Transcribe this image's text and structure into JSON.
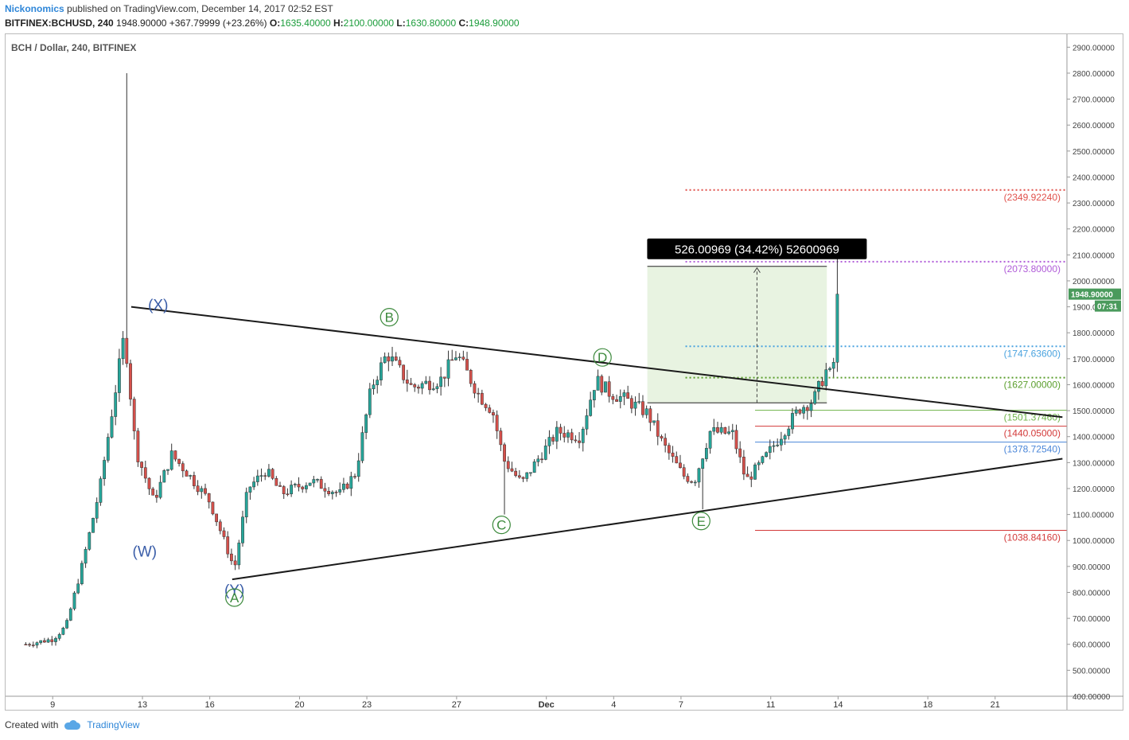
{
  "header": {
    "author": "Nickonomics",
    "published": "published on TradingView.com, December 14, 2017 02:52 EST",
    "symbol": "BITFINEX:BCHUSD, 240",
    "last": "1948.90000",
    "change": "+367.79999 (+23.26%)",
    "o_label": "O:",
    "o_value": "1635.40000",
    "h_label": "H:",
    "h_value": "2100.00000",
    "l_label": "L:",
    "l_value": "1630.80000",
    "c_label": "C:",
    "c_value": "1948.90000"
  },
  "footer": {
    "created_with": "Created with",
    "brand": "TradingView"
  },
  "colors": {
    "up": "#26a69a",
    "down": "#d5504b",
    "trendline": "#1a1a1a",
    "wave_label": "#3a5da8",
    "abc_label": "#3d8a3d",
    "box_fill": "#e8f3e1",
    "last_price": "#4a9a5c"
  },
  "chart_data": {
    "type": "candlestick",
    "title": "BCH / Dollar, 240, BITFINEX",
    "ylim": [
      400,
      2950
    ],
    "y_ticks": [
      400,
      500,
      600,
      700,
      800,
      900,
      1000,
      1100,
      1200,
      1300,
      1400,
      1500,
      1600,
      1700,
      1800,
      1900,
      2000,
      2100,
      2200,
      2300,
      2400,
      2500,
      2600,
      2700,
      2800,
      2900
    ],
    "x_ticks": [
      {
        "label": "9",
        "day": 9
      },
      {
        "label": "13",
        "day": 13
      },
      {
        "label": "16",
        "day": 16
      },
      {
        "label": "20",
        "day": 20
      },
      {
        "label": "23",
        "day": 23
      },
      {
        "label": "27",
        "day": 27
      },
      {
        "label": "Dec",
        "day": 31,
        "bold": true
      },
      {
        "label": "4",
        "day": 34
      },
      {
        "label": "7",
        "day": 37
      },
      {
        "label": "11",
        "day": 41
      },
      {
        "label": "14",
        "day": 44
      },
      {
        "label": "18",
        "day": 48
      },
      {
        "label": "21",
        "day": 51
      }
    ],
    "last_price": {
      "value": 1948.9,
      "label": "1948.90000",
      "countdown": "07:31"
    },
    "trendlines": [
      {
        "name": "upper-trendline",
        "from": {
          "day": 12.5,
          "price": 1900
        },
        "to": {
          "day": 54,
          "price": 1475
        }
      },
      {
        "name": "lower-trendline",
        "from": {
          "day": 17,
          "price": 850
        },
        "to": {
          "day": 54,
          "price": 1315
        }
      }
    ],
    "levels": [
      {
        "price": 2349.9224,
        "label": "(2349.92240)",
        "color": "#e0504b",
        "style": "dotted",
        "start_day": 37.2
      },
      {
        "price": 2073.8,
        "label": "(2073.80000)",
        "color": "#b05cd8",
        "style": "dotted",
        "start_day": 37.2
      },
      {
        "price": 1747.636,
        "label": "(1747.63600)",
        "color": "#4aa3df",
        "style": "dotted",
        "start_day": 37.2
      },
      {
        "price": 1627.0,
        "label": "(1627.00000)",
        "color": "#5a9e2c",
        "style": "dotted",
        "start_day": 37.2
      },
      {
        "price": 1501.3746,
        "label": "(1501.37460)",
        "color": "#6fb34a",
        "style": "solid",
        "start_day": 40.3
      },
      {
        "price": 1440.05,
        "label": "(1440.05000)",
        "color": "#d33a3a",
        "style": "solid",
        "start_day": 40.3
      },
      {
        "price": 1378.7254,
        "label": "(1378.72540)",
        "color": "#4a86d8",
        "style": "solid",
        "start_day": 40.3
      },
      {
        "price": 1038.8416,
        "label": "(1038.84160)",
        "color": "#d33a3a",
        "style": "solid",
        "start_day": 40.3
      }
    ],
    "measure": {
      "from_day": 35.5,
      "to_day": 43.5,
      "low": 1530,
      "high": 2056,
      "label": "526.00969 (34.42%) 52600969"
    },
    "wave_labels": [
      {
        "text": "(X)",
        "day": 13.7,
        "price": 1910,
        "color": "wave_label"
      },
      {
        "text": "(W)",
        "day": 13.1,
        "price": 960,
        "color": "wave_label"
      },
      {
        "text": "(Y)",
        "day": 17.1,
        "price": 810,
        "color": "wave_label"
      },
      {
        "text": "A",
        "day": 17.1,
        "price": 780,
        "color": "abc_label",
        "circled": true
      },
      {
        "text": "B",
        "day": 24.0,
        "price": 1860,
        "color": "abc_label",
        "circled": true
      },
      {
        "text": "C",
        "day": 29.0,
        "price": 1060,
        "color": "abc_label",
        "circled": true
      },
      {
        "text": "D",
        "day": 33.5,
        "price": 1705,
        "color": "abc_label",
        "circled": true
      },
      {
        "text": "E",
        "day": 37.9,
        "price": 1075,
        "color": "abc_label",
        "circled": true
      }
    ],
    "keypoints": [
      {
        "day": 7.8,
        "price": 600
      },
      {
        "day": 9.0,
        "price": 620
      },
      {
        "day": 9.6,
        "price": 670
      },
      {
        "day": 10.3,
        "price": 900
      },
      {
        "day": 11.1,
        "price": 1200
      },
      {
        "day": 12.2,
        "price": 1800
      },
      {
        "day": 12.7,
        "price": 1350
      },
      {
        "day": 13.5,
        "price": 1150
      },
      {
        "day": 14.3,
        "price": 1330
      },
      {
        "day": 15.0,
        "price": 1260
      },
      {
        "day": 16.0,
        "price": 1150
      },
      {
        "day": 17.1,
        "price": 890
      },
      {
        "day": 17.7,
        "price": 1200
      },
      {
        "day": 18.5,
        "price": 1270
      },
      {
        "day": 19.2,
        "price": 1180
      },
      {
        "day": 20.5,
        "price": 1230
      },
      {
        "day": 21.8,
        "price": 1180
      },
      {
        "day": 22.5,
        "price": 1260
      },
      {
        "day": 23.2,
        "price": 1590
      },
      {
        "day": 23.9,
        "price": 1720
      },
      {
        "day": 25.0,
        "price": 1590
      },
      {
        "day": 26.3,
        "price": 1620
      },
      {
        "day": 27.0,
        "price": 1720
      },
      {
        "day": 28.0,
        "price": 1560
      },
      {
        "day": 28.6,
        "price": 1500
      },
      {
        "day": 29.1,
        "price": 1310
      },
      {
        "day": 29.9,
        "price": 1220
      },
      {
        "day": 30.6,
        "price": 1310
      },
      {
        "day": 31.5,
        "price": 1420
      },
      {
        "day": 32.5,
        "price": 1400
      },
      {
        "day": 33.2,
        "price": 1620
      },
      {
        "day": 33.8,
        "price": 1570
      },
      {
        "day": 34.6,
        "price": 1540
      },
      {
        "day": 35.5,
        "price": 1490
      },
      {
        "day": 36.2,
        "price": 1370
      },
      {
        "day": 37.1,
        "price": 1250
      },
      {
        "day": 37.6,
        "price": 1230
      },
      {
        "day": 38.3,
        "price": 1420
      },
      {
        "day": 39.3,
        "price": 1410
      },
      {
        "day": 39.9,
        "price": 1230
      },
      {
        "day": 40.6,
        "price": 1300
      },
      {
        "day": 41.4,
        "price": 1400
      },
      {
        "day": 42.3,
        "price": 1510
      },
      {
        "day": 42.9,
        "price": 1540
      },
      {
        "day": 43.5,
        "price": 1660
      },
      {
        "day": 43.75,
        "price": 1620
      },
      {
        "day": 44.0,
        "price": 1948.9
      }
    ],
    "spikes": [
      {
        "day": 12.25,
        "high": 2800
      },
      {
        "day": 29.2,
        "low": 1100
      },
      {
        "day": 37.9,
        "low": 1120
      },
      {
        "day": 44.0,
        "high": 2100
      }
    ]
  }
}
